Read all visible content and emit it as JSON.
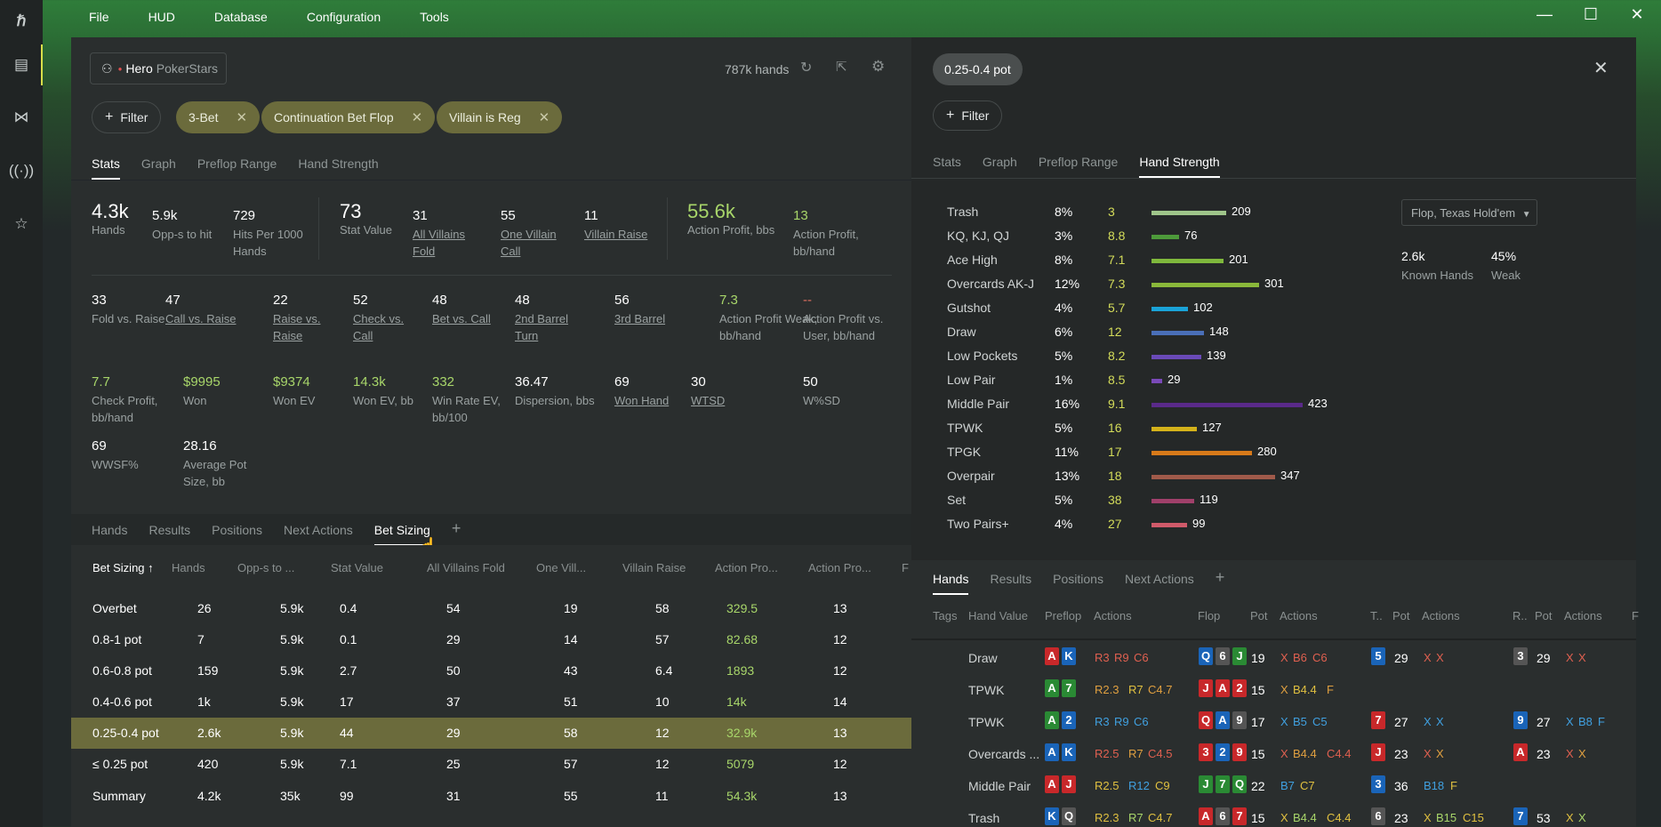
{
  "menu": {
    "file": "File",
    "hud": "HUD",
    "database": "Database",
    "configuration": "Configuration",
    "tools": "Tools"
  },
  "left": {
    "player_name": "Hero",
    "player_site": "PokerStars",
    "hands_count": "787k hands",
    "filter_label": "Filter",
    "filters": [
      "3-Bet",
      "Continuation Bet Flop",
      "Villain is Reg"
    ],
    "tabs": [
      "Stats",
      "Graph",
      "Preflop Range",
      "Hand Strength"
    ],
    "stats": [
      {
        "v": "4.3k",
        "l": "Hands"
      },
      {
        "v": "5.9k",
        "l": "Opp-s to hit"
      },
      {
        "v": "729",
        "l": "Hits Per 1000 Hands"
      },
      {
        "v": "73",
        "l": "Stat Value"
      },
      {
        "v": "31",
        "l": "All Villains Fold"
      },
      {
        "v": "55",
        "l": "One Villain Call"
      },
      {
        "v": "11",
        "l": "Villain Raise"
      },
      {
        "v": "55.6k",
        "l": "Action Profit, bbs"
      },
      {
        "v": "13",
        "l": "Action Profit, bb/hand"
      },
      {
        "v": "33",
        "l": "Fold vs. Raise"
      },
      {
        "v": "47",
        "l": "Call vs. Raise"
      },
      {
        "v": "22",
        "l": "Raise vs. Raise"
      },
      {
        "v": "52",
        "l": "Check vs. Call"
      },
      {
        "v": "48",
        "l": "Bet vs. Call"
      },
      {
        "v": "48",
        "l": "2nd Barrel Turn"
      },
      {
        "v": "56",
        "l": "3rd Barrel"
      },
      {
        "v": "7.3",
        "l": "Action Profit Weak, bb/hand"
      },
      {
        "v": "--",
        "l": "Action Profit vs. User, bb/hand"
      },
      {
        "v": "7.7",
        "l": "Check Profit, bb/hand"
      },
      {
        "v": "$9995",
        "l": "Won"
      },
      {
        "v": "$9374",
        "l": "Won EV"
      },
      {
        "v": "14.3k",
        "l": "Won EV, bb"
      },
      {
        "v": "332",
        "l": "Win Rate EV, bb/100"
      },
      {
        "v": "36.47",
        "l": "Dispersion, bbs"
      },
      {
        "v": "69",
        "l": "Won Hand"
      },
      {
        "v": "30",
        "l": "WTSD"
      },
      {
        "v": "50",
        "l": "W%SD"
      },
      {
        "v": "69",
        "l": "WWSF%"
      },
      {
        "v": "28.16",
        "l": "Average Pot Size, bb"
      }
    ],
    "bottom_tabs": [
      "Hands",
      "Results",
      "Positions",
      "Next Actions",
      "Bet Sizing"
    ],
    "add": "+",
    "columns": [
      "Bet Sizing ↑",
      "Hands",
      "Opp-s to ...",
      "Stat Value",
      "All Villains Fold",
      "One Vill...",
      "Villain Raise",
      "Action Pro...",
      "Action Pro...",
      "F"
    ],
    "rows": [
      [
        "Overbet",
        "26",
        "5.9k",
        "0.4",
        "54",
        "19",
        "58",
        "329.5",
        "13"
      ],
      [
        "0.8-1 pot",
        "7",
        "5.9k",
        "0.1",
        "29",
        "14",
        "57",
        "82.68",
        "12"
      ],
      [
        "0.6-0.8 pot",
        "159",
        "5.9k",
        "2.7",
        "50",
        "43",
        "6.4",
        "1893",
        "12"
      ],
      [
        "0.4-0.6 pot",
        "1k",
        "5.9k",
        "17",
        "37",
        "51",
        "10",
        "14k",
        "14"
      ],
      [
        "0.25-0.4 pot",
        "2.6k",
        "5.9k",
        "44",
        "29",
        "58",
        "12",
        "32.9k",
        "13"
      ],
      [
        "≤ 0.25 pot",
        "420",
        "5.9k",
        "7.1",
        "25",
        "57",
        "12",
        "5079",
        "12"
      ],
      [
        "Summary",
        "4.2k",
        "35k",
        "99",
        "31",
        "55",
        "11",
        "54.3k",
        "13"
      ]
    ]
  },
  "right": {
    "pill": "0.25-0.4 pot",
    "filter_label": "Filter",
    "tabs": [
      "Stats",
      "Graph",
      "Preflop Range",
      "Hand Strength"
    ],
    "dropdown": "Flop, Texas Hold'em",
    "known_hands_v": "2.6k",
    "known_hands_l": "Known Hands",
    "weak_v": "45%",
    "weak_l": "Weak",
    "strength": [
      {
        "n": "Trash",
        "p": "8%",
        "y": "3",
        "c": "209",
        "col": "#9fc58a"
      },
      {
        "n": "KQ, KJ, QJ",
        "p": "3%",
        "y": "8.8",
        "c": "76",
        "col": "#4d9a3a"
      },
      {
        "n": "Ace High",
        "p": "8%",
        "y": "7.1",
        "c": "201",
        "col": "#7fb83c"
      },
      {
        "n": "Overcards AK-J",
        "p": "12%",
        "y": "7.3",
        "c": "301",
        "col": "#8ab83a"
      },
      {
        "n": "Gutshot",
        "p": "4%",
        "y": "5.7",
        "c": "102",
        "col": "#1aa3d8"
      },
      {
        "n": "Draw",
        "p": "6%",
        "y": "12",
        "c": "148",
        "col": "#4a6fb8"
      },
      {
        "n": "Low Pockets",
        "p": "5%",
        "y": "8.2",
        "c": "139",
        "col": "#6a4ab8"
      },
      {
        "n": "Low Pair",
        "p": "1%",
        "y": "8.5",
        "c": "29",
        "col": "#7a4ab8"
      },
      {
        "n": "Middle Pair",
        "p": "16%",
        "y": "9.1",
        "c": "423",
        "col": "#5a2a8a"
      },
      {
        "n": "TPWK",
        "p": "5%",
        "y": "16",
        "c": "127",
        "col": "#d4b21a"
      },
      {
        "n": "TPGK",
        "p": "11%",
        "y": "17",
        "c": "280",
        "col": "#d87a1a"
      },
      {
        "n": "Overpair",
        "p": "13%",
        "y": "18",
        "c": "347",
        "col": "#a05a4a"
      },
      {
        "n": "Set",
        "p": "5%",
        "y": "38",
        "c": "119",
        "col": "#a0406a"
      },
      {
        "n": "Two Pairs+",
        "p": "4%",
        "y": "27",
        "c": "99",
        "col": "#d05a6a"
      }
    ],
    "bottom_tabs": [
      "Hands",
      "Results",
      "Positions",
      "Next Actions"
    ],
    "add": "+",
    "columns": [
      "Tags",
      "Hand Value",
      "Preflop",
      "Actions",
      "Flop",
      "Pot",
      "Actions",
      "T..",
      "Pot",
      "Actions",
      "R..",
      "Pot",
      "Actions",
      "F"
    ],
    "hands": [
      {
        "hv": "Draw",
        "pf": [
          "A",
          "K"
        ],
        "pfc": [
          "cA",
          "cB"
        ],
        "a1": [
          [
            "R3",
            "#e06050"
          ],
          [
            "R9",
            "#e06050"
          ],
          [
            "C6",
            "#e06050"
          ]
        ],
        "fl": [
          "Q",
          "6",
          "J"
        ],
        "flc": [
          "cB",
          "cD",
          "cC"
        ],
        "p1": "19",
        "a2": [
          [
            "X",
            "#e06050"
          ],
          [
            "B6",
            "#e06050"
          ],
          [
            "C6",
            "#e06050"
          ]
        ],
        "t": "5",
        "tc": "cB",
        "p2": "29",
        "a3": [
          [
            "X",
            "#e06050"
          ],
          [
            "X",
            "#e06050"
          ]
        ],
        "r": "3",
        "rc": "cD",
        "p3": "29",
        "a4": [
          [
            "X",
            "#e06050"
          ],
          [
            "X",
            "#e06050"
          ]
        ]
      },
      {
        "hv": "TPWK",
        "pf": [
          "A",
          "7"
        ],
        "pfc": [
          "cC",
          "cC"
        ],
        "a1": [
          [
            "R2.3",
            "#e0a040"
          ],
          [
            "R7",
            "#e0c040"
          ],
          [
            "C4.7",
            "#e0a040"
          ]
        ],
        "fl": [
          "J",
          "A",
          "2"
        ],
        "flc": [
          "cA",
          "cA",
          "cA"
        ],
        "p1": "15",
        "a2": [
          [
            "X",
            "#e0a040"
          ],
          [
            "B4.4",
            "#e0c040"
          ],
          [
            "F",
            "#e0a040"
          ]
        ],
        "t": "",
        "tc": "",
        "p2": "",
        "a3": [],
        "r": "",
        "rc": "",
        "p3": "",
        "a4": []
      },
      {
        "hv": "TPWK",
        "pf": [
          "A",
          "2"
        ],
        "pfc": [
          "cC",
          "cB"
        ],
        "a1": [
          [
            "R3",
            "#40a0e0"
          ],
          [
            "R9",
            "#40a0e0"
          ],
          [
            "C6",
            "#40a0e0"
          ]
        ],
        "fl": [
          "Q",
          "A",
          "9"
        ],
        "flc": [
          "cA",
          "cB",
          "cD"
        ],
        "p1": "17",
        "a2": [
          [
            "X",
            "#40a0e0"
          ],
          [
            "B5",
            "#40a0e0"
          ],
          [
            "C5",
            "#40a0e0"
          ]
        ],
        "t": "7",
        "tc": "cA",
        "p2": "27",
        "a3": [
          [
            "X",
            "#40a0e0"
          ],
          [
            "X",
            "#40a0e0"
          ]
        ],
        "r": "9",
        "rc": "cB",
        "p3": "27",
        "a4": [
          [
            "X",
            "#40a0e0"
          ],
          [
            "B8",
            "#40a0e0"
          ],
          [
            "F",
            "#40a0e0"
          ]
        ]
      },
      {
        "hv": "Overcards ...",
        "pf": [
          "A",
          "K"
        ],
        "pfc": [
          "cB",
          "cB"
        ],
        "a1": [
          [
            "R2.5",
            "#e06050"
          ],
          [
            "R7",
            "#e0a040"
          ],
          [
            "C4.5",
            "#e06050"
          ]
        ],
        "fl": [
          "3",
          "2",
          "9"
        ],
        "flc": [
          "cA",
          "cB",
          "cA"
        ],
        "p1": "15",
        "a2": [
          [
            "X",
            "#e06050"
          ],
          [
            "B4.4",
            "#e0a040"
          ],
          [
            "C4.4",
            "#e06050"
          ]
        ],
        "t": "J",
        "tc": "cA",
        "p2": "23",
        "a3": [
          [
            "X",
            "#e06050"
          ],
          [
            "X",
            "#e0a040"
          ]
        ],
        "r": "A",
        "rc": "cA",
        "p3": "23",
        "a4": [
          [
            "X",
            "#e06050"
          ],
          [
            "X",
            "#e0a040"
          ]
        ]
      },
      {
        "hv": "Middle Pair",
        "pf": [
          "A",
          "J"
        ],
        "pfc": [
          "cA",
          "cA"
        ],
        "a1": [
          [
            "R2.5",
            "#e0c040"
          ],
          [
            "R12",
            "#40a0e0"
          ],
          [
            "C9",
            "#e0c040"
          ]
        ],
        "fl": [
          "J",
          "7",
          "Q"
        ],
        "flc": [
          "cC",
          "cC",
          "cC"
        ],
        "p1": "22",
        "a2": [
          [
            "B7",
            "#40a0e0"
          ],
          [
            "C7",
            "#e0c040"
          ]
        ],
        "t": "3",
        "tc": "cB",
        "p2": "36",
        "a3": [
          [
            "B18",
            "#40a0e0"
          ],
          [
            "F",
            "#e0c040"
          ]
        ],
        "r": "",
        "rc": "",
        "p3": "",
        "a4": []
      },
      {
        "hv": "Trash",
        "pf": [
          "K",
          "Q"
        ],
        "pfc": [
          "cB",
          "cD"
        ],
        "a1": [
          [
            "R2.3",
            "#e0c040"
          ],
          [
            "R7",
            "#a8d66a"
          ],
          [
            "C4.7",
            "#e0c040"
          ]
        ],
        "fl": [
          "A",
          "6",
          "7"
        ],
        "flc": [
          "cA",
          "cD",
          "cA"
        ],
        "p1": "15",
        "a2": [
          [
            "X",
            "#e0c040"
          ],
          [
            "B4.4",
            "#a8d66a"
          ],
          [
            "C4.4",
            "#e0c040"
          ]
        ],
        "t": "6",
        "tc": "cD",
        "p2": "23",
        "a3": [
          [
            "X",
            "#e0c040"
          ],
          [
            "B15",
            "#a8d66a"
          ],
          [
            "C15",
            "#e0c040"
          ]
        ],
        "r": "7",
        "rc": "cB",
        "p3": "53",
        "a4": [
          [
            "X",
            "#e0c040"
          ],
          [
            "X",
            "#a8d66a"
          ]
        ]
      }
    ]
  }
}
